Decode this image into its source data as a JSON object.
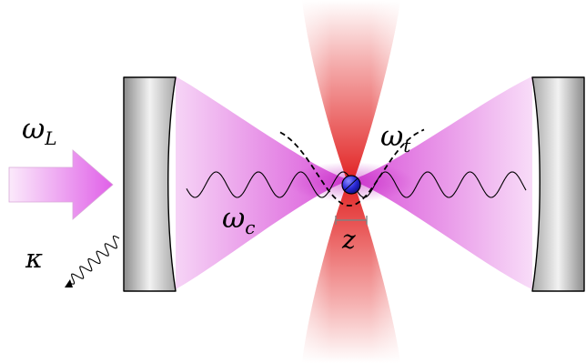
{
  "labels": {
    "laser_freq": {
      "symbol": "ω",
      "sub": "L"
    },
    "trap_freq": {
      "symbol": "ω",
      "sub": "t"
    },
    "cavity_freq": {
      "symbol": "ω",
      "sub": "c"
    },
    "decay": {
      "symbol": "κ"
    },
    "position": {
      "symbol": "z"
    }
  },
  "colors": {
    "cavity_field": "#e070e0",
    "trap_beam": "#e02020",
    "mirror": "#b0b0b0",
    "particle": "#2a2ad8",
    "arrow": "#e060e8"
  }
}
